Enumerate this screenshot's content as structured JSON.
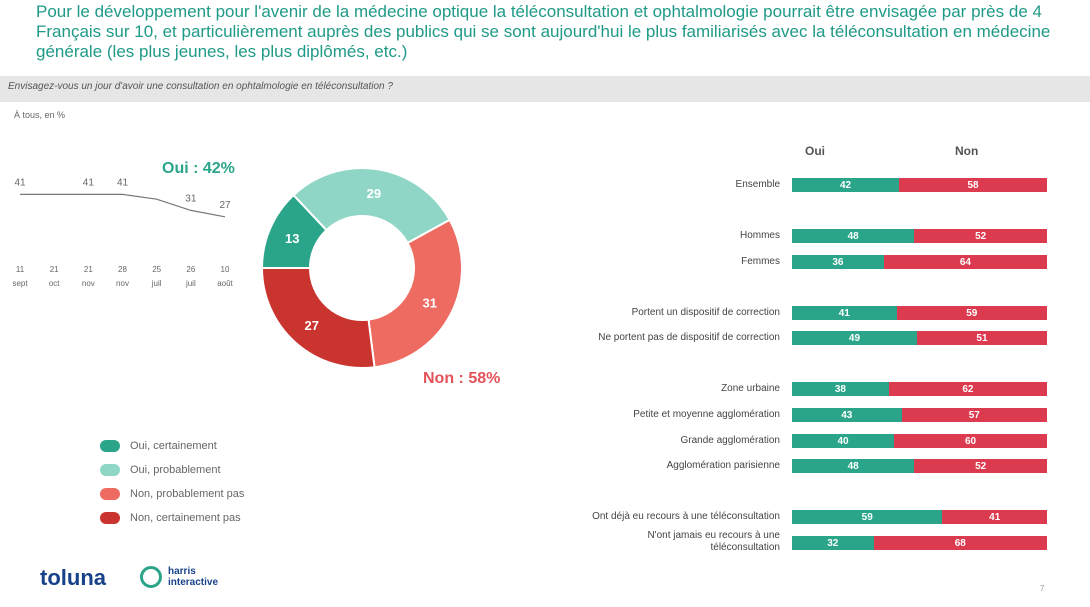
{
  "title": {
    "bold": "Pour l'avenir de la médecine",
    "text": "Pour le développement pour l'avenir de la médecine optique la téléconsultation et ophtalmologie pourrait être envisagée par près de 4 Français sur 10, et particulièrement auprès des publics qui se sont aujourd'hui le plus familiarisés avec la téléconsultation en médecine générale (les plus jeunes, les plus diplômés, etc.)"
  },
  "question": "Envisagez-vous un jour d'avoir une consultation en ophtalmologie en téléconsultation ?",
  "unit": "À tous, en %",
  "oui_label": "Oui : 42%",
  "non_label": "Non : 58%",
  "colors": {
    "oui_certainement": "#2aa58a",
    "oui_probablement": "#8fd6c6",
    "non_probablement_pas": "#ee6b62",
    "non_certainement_pas": "#c9342f",
    "oui_bar": "#2aa58a",
    "non_bar": "#dc3a4e"
  },
  "chart_data": [
    {
      "type": "line",
      "x": [
        "11 sept",
        "21 oct",
        "21 nov",
        "28 nov",
        "25 juil",
        "26 juil",
        "10 août"
      ],
      "x_tick_top": [
        "11",
        "21",
        "21",
        "28",
        "25",
        "26",
        "10"
      ],
      "x_tick_bottom": [
        "sept",
        "oct",
        "nov",
        "nov",
        "juil",
        "juil",
        "août"
      ],
      "series": [
        {
          "values": [
            41,
            41,
            41,
            41,
            38,
            31,
            27
          ]
        }
      ],
      "point_labels": [
        "41",
        "41",
        "41",
        "31",
        "27"
      ]
    },
    {
      "type": "pie",
      "donut": true,
      "labels": [
        "Oui, certainement",
        "Oui, probablement",
        "Non, probablement pas",
        "Non, certainement pas"
      ],
      "values": [
        13,
        29,
        31,
        27
      ]
    },
    {
      "type": "bar",
      "stacked": true,
      "orientation": "horizontal",
      "columns": [
        "Oui",
        "Non"
      ],
      "rows": [
        {
          "label": "Ensemble",
          "oui": 42,
          "non": 58,
          "oui_label": "42",
          "non_label": "58"
        },
        {
          "label": "Hommes",
          "oui": 48,
          "non": 52,
          "oui_label": "48",
          "non_label": "52"
        },
        {
          "label": "Femmes",
          "oui": 36,
          "non": 64,
          "oui_label": "36",
          "non_label": "64"
        },
        {
          "label": "Portent un dispositif de correction",
          "oui": 41,
          "non": 59,
          "oui_label": "41",
          "non_label": "59"
        },
        {
          "label": "Ne portent pas de dispositif de correction",
          "oui": 49,
          "non": 51,
          "oui_label": "49",
          "non_label": "51"
        },
        {
          "label": "Zone urbaine",
          "oui": 38,
          "non": 62,
          "oui_label": "38",
          "non_label": "62"
        },
        {
          "label": "Petite et moyenne agglomération",
          "oui": 43,
          "non": 57,
          "oui_label": "43",
          "non_label": "57"
        },
        {
          "label": "Grande agglomération",
          "oui": 40,
          "non": 60,
          "oui_label": "40",
          "non_label": "60"
        },
        {
          "label": "Agglomération parisienne",
          "oui": 48,
          "non": 52,
          "oui_label": "48",
          "non_label": "52"
        },
        {
          "label": "Ont déjà eu recours à une téléconsultation",
          "oui": 59,
          "non": 41,
          "oui_label": "59",
          "non_label": "41"
        },
        {
          "label": "N'ont jamais eu recours à une téléconsultation",
          "oui": 32,
          "non": 68,
          "oui_label": "32",
          "non_label": "68"
        }
      ]
    }
  ],
  "footer": {
    "toluna": "toluna",
    "harris_line1": "harris",
    "harris_line2": "interactive",
    "page": "7"
  }
}
